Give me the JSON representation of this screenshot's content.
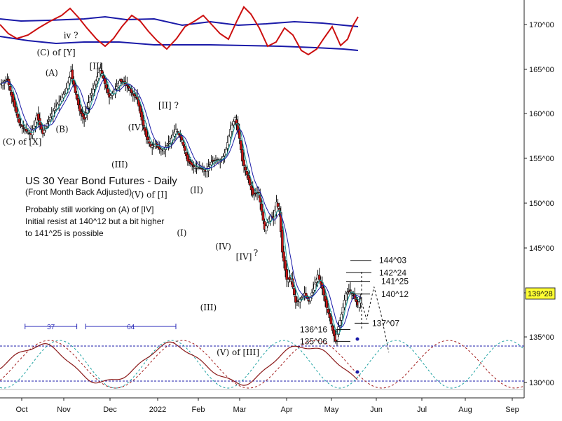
{
  "chart_data": {
    "type": "candlestick",
    "title": "US 30 Year Bond Futures - Daily",
    "subtitle": "(Front Month Back Adjusted)",
    "notes": [
      "Probably still working on (A) of [IV]",
      "Initial resist at 140^12 but a bit higher",
      "to 141^25 is possible"
    ],
    "x_ticks": [
      "Oct",
      "Nov",
      "Dec",
      "2022",
      "Feb",
      "Mar",
      "Apr",
      "May",
      "Jun",
      "Jul",
      "Aug",
      "Sep"
    ],
    "y_ticks": [
      "130^00",
      "135^00",
      "140^00",
      "145^00",
      "150^00",
      "155^00",
      "160^00",
      "165^00",
      "170^00"
    ],
    "ylim": [
      128.5,
      173.0
    ],
    "last_price": "139^28",
    "price_path": [
      [
        0,
        163.5
      ],
      [
        4,
        164.0
      ],
      [
        8,
        161.5
      ],
      [
        12,
        159.2
      ],
      [
        16,
        158.4
      ],
      [
        20,
        157.9
      ],
      [
        24,
        160.0
      ],
      [
        28,
        158.0
      ],
      [
        32,
        159.5
      ],
      [
        36,
        160.8
      ],
      [
        40,
        161.7
      ],
      [
        44,
        163.0
      ],
      [
        47,
        164.8
      ],
      [
        50,
        162.5
      ],
      [
        53,
        160.5
      ],
      [
        56,
        159.6
      ],
      [
        60,
        162.0
      ],
      [
        64,
        163.8
      ],
      [
        67,
        165.2
      ],
      [
        70,
        163.5
      ],
      [
        73,
        162.0
      ],
      [
        76,
        162.6
      ],
      [
        80,
        163.8
      ],
      [
        84,
        163.5
      ],
      [
        88,
        162.5
      ],
      [
        92,
        161.8
      ],
      [
        95,
        159.5
      ],
      [
        98,
        157.7
      ],
      [
        101,
        156.6
      ],
      [
        104,
        156.9
      ],
      [
        107,
        156.3
      ],
      [
        110,
        156.3
      ],
      [
        114,
        157.2
      ],
      [
        118,
        158.5
      ],
      [
        122,
        157.3
      ],
      [
        126,
        155.0
      ],
      [
        130,
        154.4
      ],
      [
        134,
        154.3
      ],
      [
        138,
        153.9
      ],
      [
        142,
        154.9
      ],
      [
        146,
        155.2
      ],
      [
        149,
        155.1
      ],
      [
        152,
        156.3
      ],
      [
        155,
        158.5
      ],
      [
        158,
        159.8
      ],
      [
        161,
        157.5
      ],
      [
        163,
        155.0
      ],
      [
        166,
        153.5
      ],
      [
        170,
        151.3
      ],
      [
        174,
        151.5
      ],
      [
        178,
        147.5
      ],
      [
        182,
        149.0
      ],
      [
        184,
        148.7
      ],
      [
        186,
        150.5
      ],
      [
        188,
        149.5
      ],
      [
        190,
        145.0
      ],
      [
        193,
        142.0
      ],
      [
        196,
        142.0
      ],
      [
        199,
        139.5
      ],
      [
        202,
        139.8
      ],
      [
        205,
        140.5
      ],
      [
        208,
        139.6
      ],
      [
        211,
        141.0
      ],
      [
        214,
        142.5
      ],
      [
        217,
        141.0
      ],
      [
        220,
        138.9
      ],
      [
        222,
        137.8
      ],
      [
        224,
        136.4
      ],
      [
        226,
        135.2
      ],
      [
        228,
        136.8
      ],
      [
        230,
        138.2
      ],
      [
        233,
        140.5
      ],
      [
        236,
        140.8
      ],
      [
        239,
        139.9
      ],
      [
        241,
        139.2
      ],
      [
        243,
        139.9
      ]
    ],
    "waves": [
      {
        "label": "(C) of [Y]",
        "x": 37,
        "y": 166.6
      },
      {
        "label": "iv ?",
        "x": 47,
        "y": 168.5
      },
      {
        "label": "(A)",
        "x": 34,
        "y": 164.4
      },
      {
        "label": "(B)",
        "x": 41,
        "y": 158.2
      },
      {
        "label": "[II]",
        "x": 64,
        "y": 165.1
      },
      {
        "label": "(I)",
        "x": 57,
        "y": 160.3
      },
      {
        "label": "(C) of [X]",
        "x": 14,
        "y": 156.8
      },
      {
        "label": "(IV)",
        "x": 91,
        "y": 158.4
      },
      {
        "label": "(III)",
        "x": 80,
        "y": 154.3
      },
      {
        "label": "[II] ?",
        "x": 113,
        "y": 160.8
      },
      {
        "label": "(V) of [I]",
        "x": 100,
        "y": 151.0
      },
      {
        "label": "(II)",
        "x": 132,
        "y": 151.5
      },
      {
        "label": "(I)",
        "x": 122,
        "y": 146.8
      },
      {
        "label": "(IV)",
        "x": 150,
        "y": 145.3
      },
      {
        "label": "(III)",
        "x": 140,
        "y": 138.6
      },
      {
        "label": "[IV]",
        "x": 164,
        "y": 144.2
      },
      {
        "label": "?",
        "x": 172,
        "y": 144.6
      },
      {
        "label": "(V) of [III]",
        "x": 160,
        "y": 133.7
      }
    ],
    "levels": [
      {
        "label": "144^03",
        "value": 144.1
      },
      {
        "label": "142^24",
        "value": 142.75
      },
      {
        "label": "141^25",
        "value": 141.8
      },
      {
        "label": "140^12",
        "value": 140.4
      },
      {
        "label": "137^07",
        "value": 137.2
      },
      {
        "label": "136^16",
        "value": 136.5
      },
      {
        "label": "135^06",
        "value": 135.2
      }
    ],
    "projection": [
      [
        243,
        139.9
      ],
      [
        247,
        137.6
      ],
      [
        252,
        141.2
      ],
      [
        257,
        138.0
      ],
      [
        262,
        134.0
      ]
    ],
    "cycles": [
      {
        "label": "37",
        "from": 16,
        "to": 51
      },
      {
        "label": "64",
        "from": 57,
        "to": 118
      }
    ],
    "grid": false
  }
}
